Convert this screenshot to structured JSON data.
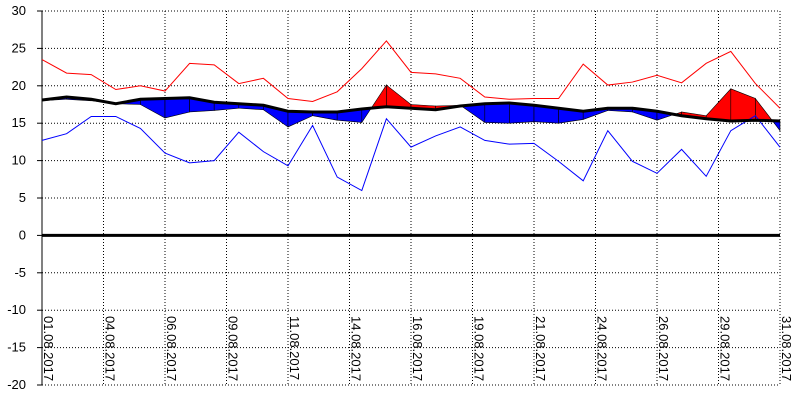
{
  "chart_data": {
    "type": "line",
    "x": [
      1,
      2,
      3,
      4,
      5,
      6,
      7,
      8,
      9,
      10,
      11,
      12,
      13,
      14,
      15,
      16,
      17,
      18,
      19,
      20,
      21,
      22,
      23,
      24,
      25,
      26,
      27,
      28,
      29,
      30,
      31
    ],
    "xlim": [
      1,
      31
    ],
    "xticks": [
      {
        "value": 1,
        "label": "01.08.2017"
      },
      {
        "value": 3.5,
        "label": "04.08.2017"
      },
      {
        "value": 6,
        "label": "06.08.2017"
      },
      {
        "value": 8.5,
        "label": "09.08.2017"
      },
      {
        "value": 11,
        "label": "11.08.2017"
      },
      {
        "value": 13.5,
        "label": "14.08.2017"
      },
      {
        "value": 16,
        "label": "16.08.2017"
      },
      {
        "value": 18.5,
        "label": "19.08.2017"
      },
      {
        "value": 21,
        "label": "21.08.2017"
      },
      {
        "value": 23.5,
        "label": "24.08.2017"
      },
      {
        "value": 26,
        "label": "26.08.2017"
      },
      {
        "value": 28.5,
        "label": "29.08.2017"
      },
      {
        "value": 31,
        "label": "31.08.2017"
      }
    ],
    "ylim": [
      -20,
      30
    ],
    "yticks": [
      30,
      25,
      20,
      15,
      10,
      5,
      0,
      -5,
      -10,
      -15,
      -20
    ],
    "grid": true,
    "series": [
      {
        "color": "#ff0000",
        "width": 1,
        "values": [
          23.5,
          21.7,
          21.5,
          19.5,
          20,
          19.3,
          23,
          22.8,
          20.3,
          21,
          18.3,
          17.9,
          19.2,
          22.3,
          26,
          21.8,
          21.6,
          21,
          18.5,
          18.2,
          18.3,
          18.3,
          22.9,
          20.1,
          20.5,
          21.4,
          20.4,
          23,
          24.6,
          20.3,
          17
        ]
      },
      {
        "color": "#0000ff",
        "width": 1,
        "values": [
          12.7,
          13.6,
          15.9,
          15.9,
          14.3,
          11,
          9.7,
          10,
          13.8,
          11.2,
          9.3,
          14.7,
          7.8,
          6,
          15.6,
          11.8,
          13.3,
          14.5,
          12.7,
          12.2,
          12.3,
          9.9,
          7.3,
          14,
          9.9,
          8.3,
          11.5,
          7.9,
          14,
          16,
          11.8
        ]
      },
      {
        "color": "#000000",
        "width": 3,
        "values": [
          18.1,
          18.5,
          18.2,
          17.6,
          18.2,
          18.3,
          18.4,
          17.8,
          17.6,
          17.4,
          16.6,
          16.5,
          16.5,
          16.9,
          17.2,
          17,
          16.8,
          17.3,
          17.6,
          17.7,
          17.4,
          17,
          16.6,
          17,
          17,
          16.6,
          16,
          15.6,
          15.3,
          15.4,
          15.3
        ]
      }
    ],
    "anomaly": {
      "baseline_series": 2,
      "above_color": "#ff0000",
      "below_color": "#0000ff",
      "values": [
        18,
        18.2,
        18,
        17.6,
        17.5,
        15.7,
        16.5,
        16.7,
        17,
        16.8,
        14.5,
        16,
        15.4,
        15.1,
        20.1,
        17.5,
        17.3,
        17.4,
        15.1,
        15,
        15.2,
        15,
        15.5,
        16.7,
        16.5,
        15.4,
        16.5,
        16,
        19.6,
        18.3,
        14
      ]
    }
  }
}
